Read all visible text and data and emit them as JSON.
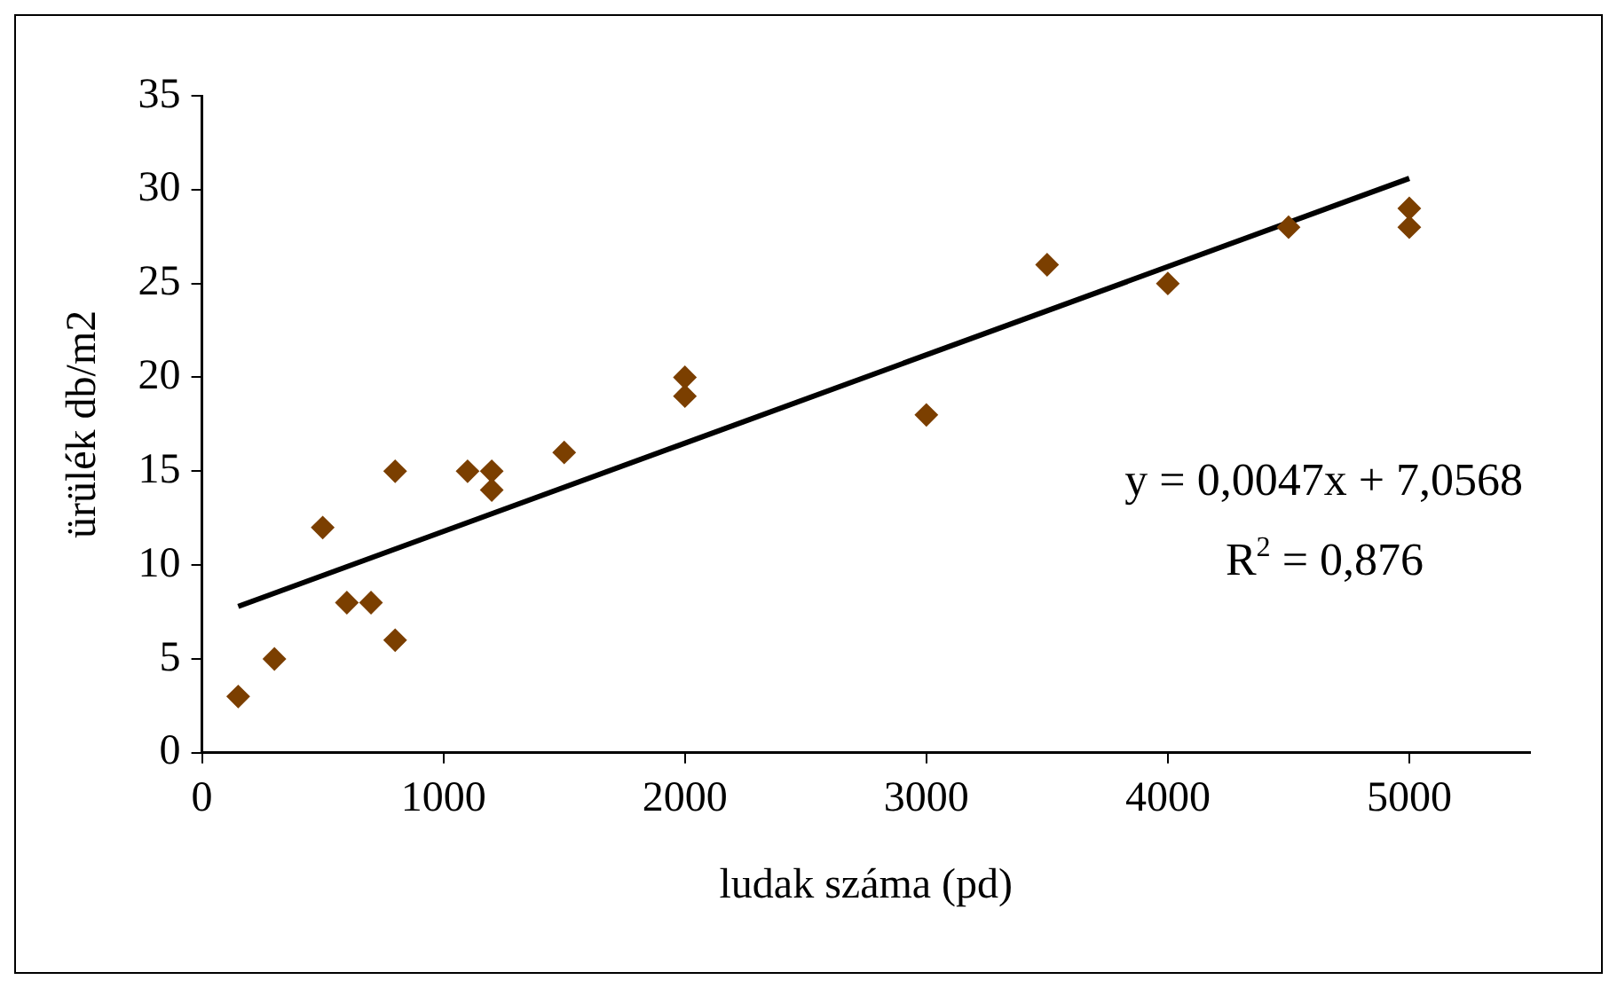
{
  "chart_data": {
    "type": "scatter",
    "xlabel": "ludak száma (pd)",
    "ylabel": "ürülék db/m2",
    "xlim": [
      0,
      5500
    ],
    "xticks": [
      0,
      1000,
      2000,
      3000,
      4000,
      5000
    ],
    "ylim": [
      0,
      35
    ],
    "yticks": [
      0,
      5,
      10,
      15,
      20,
      25,
      30,
      35
    ],
    "grid": false,
    "legend": false,
    "series": [
      {
        "marker": "diamond",
        "color": "#7b3f00",
        "x": [
          150,
          300,
          500,
          600,
          700,
          800,
          800,
          1100,
          1200,
          1200,
          1500,
          2000,
          2000,
          3000,
          3500,
          4000,
          4500,
          5000,
          5000
        ],
        "values": [
          3,
          5,
          12,
          8,
          8,
          6,
          15,
          15,
          15,
          14,
          16,
          20,
          19,
          18,
          26,
          25,
          28,
          29,
          28
        ]
      },
      {
        "type": "line",
        "marker": "none",
        "color": "#000000",
        "x": [
          150,
          5000
        ],
        "values": [
          7.8,
          30.6
        ]
      }
    ],
    "annotations": [
      "y = 0,0047x + 7,0568",
      "R$^{2}$ = 0,876"
    ]
  }
}
